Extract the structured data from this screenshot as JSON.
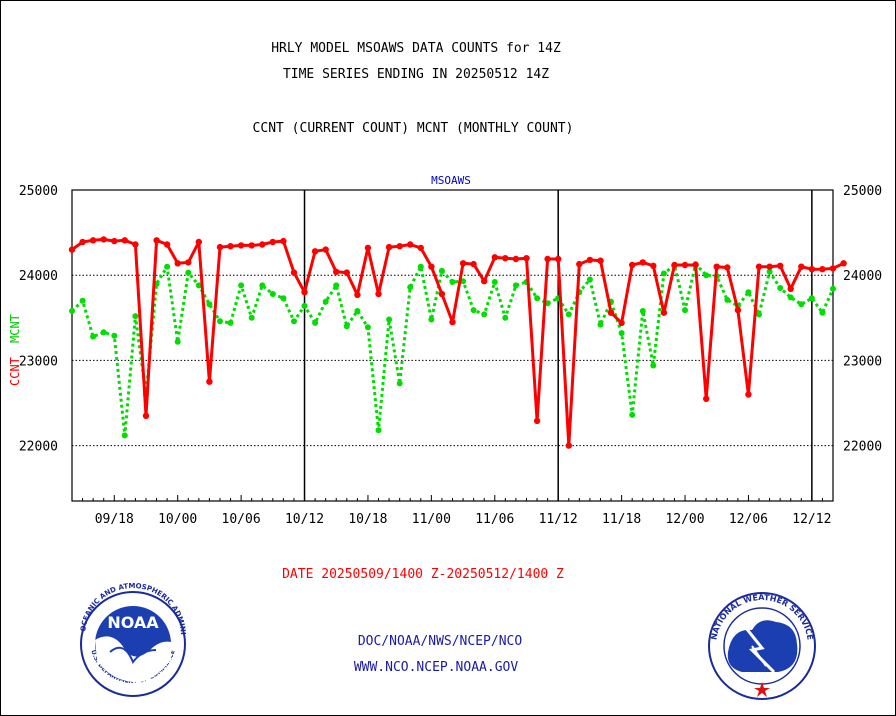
{
  "chart_data": {
    "type": "line",
    "title_lines": [
      "HRLY MODEL MSOAWS DATA COUNTS for 14Z",
      "TIME SERIES ENDING IN 20250512 14Z"
    ],
    "subtitle": "CCNT (CURRENT COUNT) MCNT (MONTHLY COUNT)",
    "panel_label": "MSOAWS",
    "ylabel_left_red": "CCNT",
    "ylabel_left_green": "MCNT",
    "y_ticks": [
      "25000",
      "24000",
      "23000",
      "22000"
    ],
    "y_tick_values": [
      25000,
      24000,
      23000,
      22000
    ],
    "ylim": [
      21350,
      25000
    ],
    "x_ticks": [
      "09/18",
      "10/00",
      "10/06",
      "10/12",
      "10/18",
      "11/00",
      "11/06",
      "11/12",
      "11/18",
      "12/00",
      "12/06",
      "12/12"
    ],
    "x_tick_hours": [
      4,
      10,
      16,
      22,
      28,
      34,
      40,
      46,
      52,
      58,
      64,
      70
    ],
    "xlim": [
      0,
      72
    ],
    "day_boundaries_hours": [
      22,
      46,
      70
    ],
    "grid": "dotted horizontal at y ticks",
    "date_range": "DATE 20250509/1400 Z-20250512/1400 Z",
    "colors": {
      "ccnt": "#ff0000",
      "mcnt": "#00dd00",
      "text": "#000000",
      "label": "#0000cc"
    },
    "series": [
      {
        "name": "CCNT",
        "values": [
          24300,
          24390,
          24410,
          24420,
          24400,
          24410,
          24360,
          22350,
          24410,
          24360,
          24140,
          24150,
          24390,
          22750,
          24330,
          24340,
          24350,
          24350,
          24360,
          24390,
          24400,
          24030,
          23800,
          24280,
          24300,
          24040,
          24030,
          23770,
          24320,
          23780,
          24330,
          24340,
          24360,
          24320,
          24100,
          23780,
          23450,
          24140,
          24130,
          23930,
          24210,
          24200,
          24190,
          24200,
          22290,
          24190,
          24190,
          22000,
          24130,
          24180,
          24170,
          23560,
          23440,
          24120,
          24150,
          24110,
          23560,
          24120,
          24120,
          24120,
          22550,
          24100,
          24090,
          23590,
          22600,
          24100,
          24100,
          24110,
          23840,
          24100,
          24070,
          24070,
          24080,
          24140
        ]
      },
      {
        "name": "MCNT",
        "values": [
          23580,
          23700,
          23280,
          23330,
          23290,
          22120,
          23520,
          22600,
          23900,
          24100,
          23220,
          24030,
          23880,
          23660,
          23460,
          23440,
          23880,
          23500,
          23880,
          23780,
          23730,
          23460,
          23640,
          23440,
          23690,
          23880,
          23400,
          23580,
          23390,
          22180,
          23480,
          22730,
          23860,
          24100,
          23480,
          24050,
          23920,
          23930,
          23590,
          23540,
          23920,
          23500,
          23880,
          23920,
          23730,
          23670,
          23730,
          23540,
          23800,
          23950,
          23420,
          23690,
          23320,
          22360,
          23580,
          22940,
          24020,
          24120,
          23590,
          24130,
          24000,
          23990,
          23710,
          23640,
          23800,
          23540,
          24040,
          23850,
          23740,
          23660,
          23730,
          23560,
          23840
        ]
      }
    ]
  },
  "footer": {
    "links": [
      "DOC/NOAA/NWS/NCEP/NCO",
      "WWW.NCO.NCEP.NOAA.GOV"
    ]
  },
  "logos": {
    "noaa_text": "NOAA",
    "noaa_ring_text": "NATIONAL OCEANIC AND ATMOSPHERIC ADMINISTRATION",
    "noaa_ring_text_bottom": "U.S. DEPARTMENT OF COMMERCE",
    "nws_ring_text": "NATIONAL WEATHER SERVICE"
  }
}
